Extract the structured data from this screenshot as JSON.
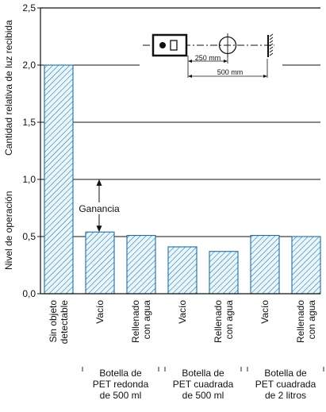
{
  "chart_data": {
    "type": "bar",
    "title": "",
    "ylabel_upper": "Cantidad relativa de luz recibida",
    "ylabel_lower": "Nivel de operación",
    "ylim": [
      0,
      2.5
    ],
    "yticks": [
      "0,0",
      "0,5",
      "1,0",
      "1,5",
      "2,0",
      "2,5"
    ],
    "grid": "horizontal",
    "categories": [
      [
        "Sin objeto",
        "detectable"
      ],
      [
        "Vacío"
      ],
      [
        "Rellenado",
        "con agua"
      ],
      [
        "Vacío"
      ],
      [
        "Rellenado",
        "con agua"
      ],
      [
        "Vacío"
      ],
      [
        "Rellenado",
        "con agua"
      ]
    ],
    "values": [
      2.0,
      0.54,
      0.51,
      0.41,
      0.37,
      0.51,
      0.5
    ],
    "groups": [
      {
        "lines": [
          "Botella de",
          "PET redonda",
          "de 500 ml"
        ],
        "members": [
          1,
          2
        ]
      },
      {
        "lines": [
          "Botella de",
          "PET cuadrada",
          "de 500 ml"
        ],
        "members": [
          3,
          4
        ]
      },
      {
        "lines": [
          "Botella de",
          "PET cuadrada",
          "de 2 litros"
        ],
        "members": [
          5,
          6
        ]
      }
    ],
    "annotation": {
      "label": "Ganancia",
      "from": 0.54,
      "to": 1.0
    },
    "inset": {
      "dim1": "250 mm",
      "dim2": "500 mm"
    },
    "colors": {
      "bar_fill": "#eaf6fb",
      "bar_hatch": "#1a6fa0",
      "axis": "#111111"
    }
  }
}
